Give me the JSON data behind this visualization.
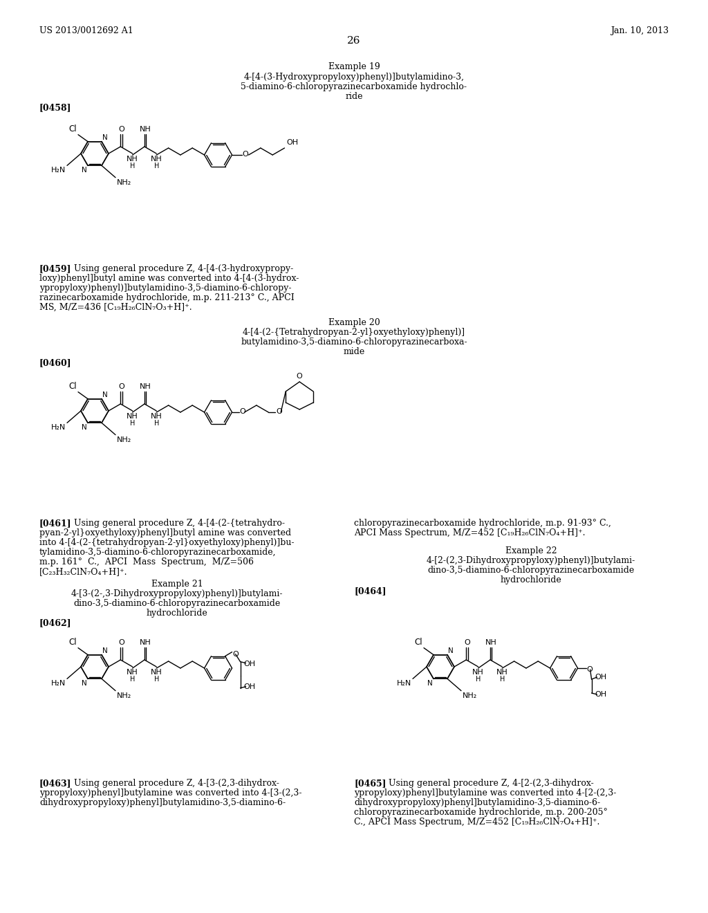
{
  "bg_color": "#ffffff",
  "header_left": "US 2013/0012692 A1",
  "header_right": "Jan. 10, 2013",
  "page_number": "26"
}
